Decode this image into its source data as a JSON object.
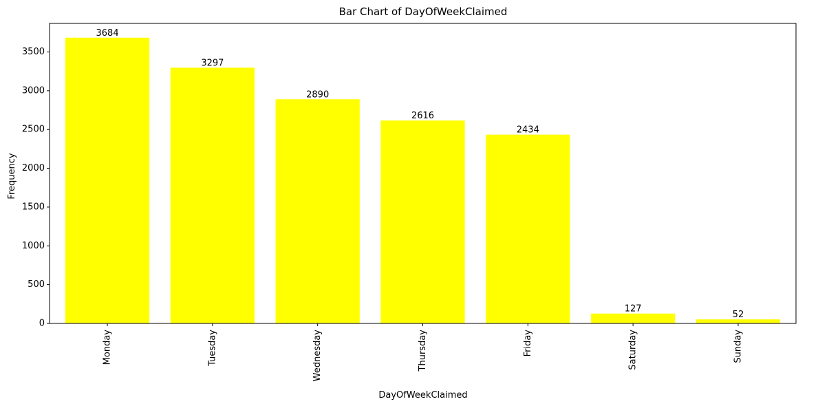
{
  "chart_data": {
    "type": "bar",
    "title": "Bar Chart of DayOfWeekClaimed",
    "xlabel": "DayOfWeekClaimed",
    "ylabel": "Frequency",
    "categories": [
      "Monday",
      "Tuesday",
      "Wednesday",
      "Thursday",
      "Friday",
      "Saturday",
      "Sunday"
    ],
    "values": [
      3684,
      3297,
      2890,
      2616,
      2434,
      127,
      52
    ],
    "value_labels": [
      "3684",
      "3297",
      "2890",
      "2616",
      "2434",
      "127",
      "52"
    ],
    "yticks": [
      0,
      500,
      1000,
      1500,
      2000,
      2500,
      3000,
      3500
    ],
    "ytick_labels": [
      "0",
      "500",
      "1000",
      "1500",
      "2000",
      "2500",
      "3000",
      "3500"
    ],
    "ylim": [
      0,
      3868.2
    ],
    "bar_color": "#ffff00",
    "grid": false,
    "xtick_rotation": "vertical"
  }
}
